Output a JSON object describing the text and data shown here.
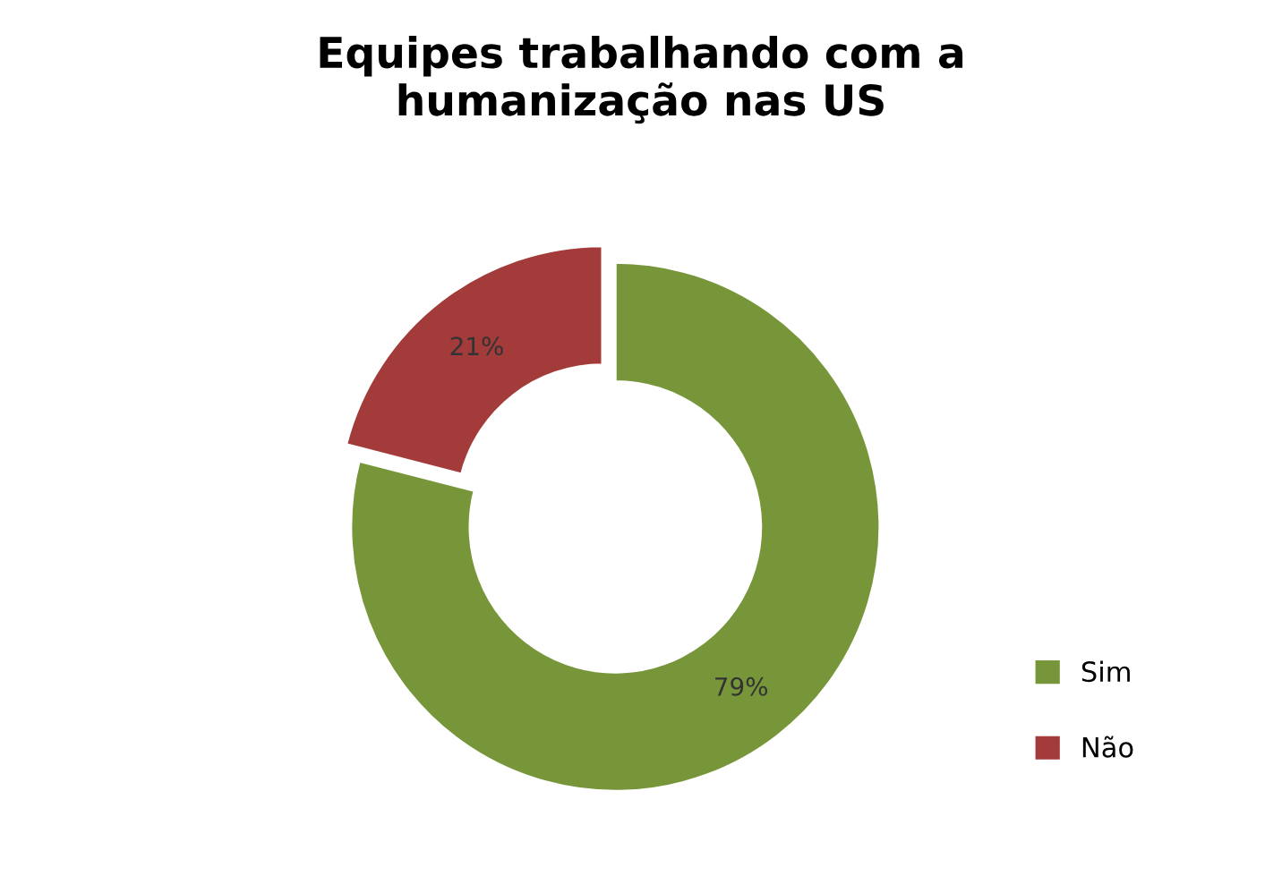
{
  "chart_data": {
    "type": "donut",
    "title": "Equipes trabalhando com a\nhumanização nas US",
    "categories": [
      "Sim",
      "Não"
    ],
    "values": [
      79,
      21
    ],
    "colors": [
      "#77963a",
      "#a23b39"
    ],
    "value_labels": [
      "79%",
      "21%"
    ],
    "legend": "right"
  }
}
